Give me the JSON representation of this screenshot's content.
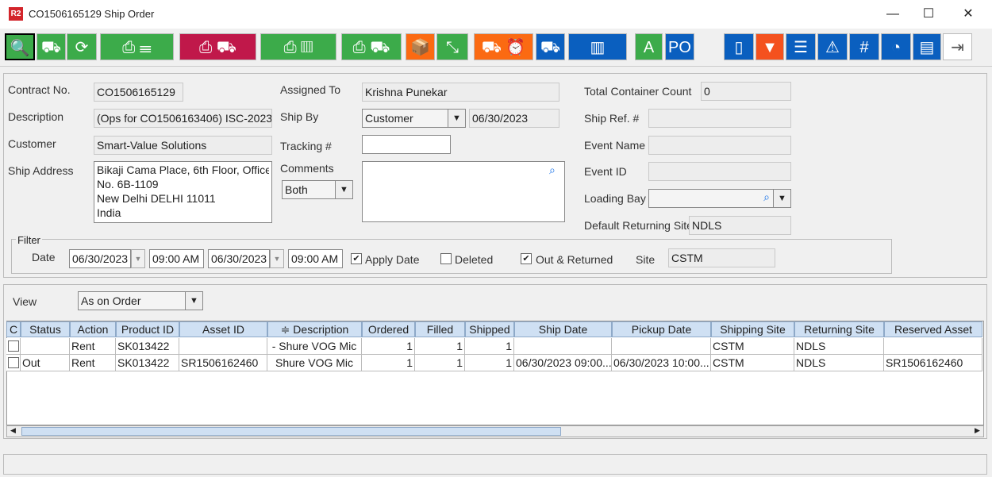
{
  "window": {
    "title": "CO1506165129 Ship Order",
    "logo": "R2",
    "minimize": "—",
    "maximize": "☐",
    "close": "✕"
  },
  "toolbar": [
    {
      "icon": "search-icon",
      "glyph": "🔍",
      "color": "#3cab4a"
    },
    {
      "icon": "hand-truck-print-icon",
      "glyph": "⛟",
      "color": "#3cab4a"
    },
    {
      "icon": "refresh-icon",
      "glyph": "⟳",
      "color": "#3cab4a"
    },
    {
      "icon": "print-list-icon",
      "glyph": "⎙ ☰",
      "color": "#3cab4a"
    },
    {
      "icon": "print-truck-check-icon",
      "glyph": "⎙ ⛟",
      "color": "#c0184a"
    },
    {
      "icon": "print-container-icon",
      "glyph": "⎙ ▥",
      "color": "#3cab4a"
    },
    {
      "icon": "print-truck-clock-icon",
      "glyph": "⎙ ⛟",
      "color": "#3cab4a"
    },
    {
      "icon": "open-box-icon",
      "glyph": "📦",
      "color": "#fb6a12"
    },
    {
      "icon": "compress-icon",
      "glyph": "⤡",
      "color": "#3cab4a"
    },
    {
      "icon": "truck-alarm-icon",
      "glyph": "⛟ ⏰",
      "color": "#fb6a12"
    },
    {
      "icon": "st-truck-icon",
      "glyph": "⛟",
      "color": "#0a5fbf"
    },
    {
      "icon": "container-icon",
      "glyph": "▥",
      "color": "#0a5fbf"
    },
    {
      "icon": "expand-a-icon",
      "glyph": "A",
      "color": "#3cab4a"
    },
    {
      "icon": "po-view-icon",
      "glyph": "PO",
      "color": "#0a5fbf"
    },
    {
      "icon": "book-icon",
      "glyph": "▯",
      "color": "#0a5fbf"
    },
    {
      "icon": "filter-icon",
      "glyph": "▼",
      "color": "#f4511e"
    },
    {
      "icon": "list-icon",
      "glyph": "☰",
      "color": "#0a5fbf"
    },
    {
      "icon": "warning-view-icon",
      "glyph": "⚠",
      "color": "#0a5fbf"
    },
    {
      "icon": "hash-icon",
      "glyph": "#",
      "color": "#0a5fbf"
    },
    {
      "icon": "gauge-icon",
      "glyph": "◔",
      "color": "#0a5fbf"
    },
    {
      "icon": "message-icon",
      "glyph": "▤",
      "color": "#0a5fbf"
    },
    {
      "icon": "exit-icon",
      "glyph": "⇥",
      "color": "#ffffff"
    }
  ],
  "form": {
    "contract_no_label": "Contract No.",
    "contract_no": "CO1506165129",
    "description_label": "Description",
    "description": "(Ops for CO1506163406) ISC-2023",
    "customer_label": "Customer",
    "customer": "Smart-Value Solutions",
    "ship_address_label": "Ship Address",
    "ship_address": [
      "Bikaji Cama Place, 6th Floor, Office",
      "No. 6B-1109",
      "New Delhi DELHI 11011",
      "India"
    ],
    "assigned_to_label": "Assigned To",
    "assigned_to": "Krishna Punekar",
    "ship_by_label": "Ship By",
    "ship_by": "Customer",
    "ship_by_date": "06/30/2023",
    "tracking_label": "Tracking #",
    "tracking": "",
    "comments_label": "Comments",
    "comments_filter": "Both",
    "comments": "",
    "total_container_label": "Total Container Count",
    "total_container": "0",
    "ship_ref_label": "Ship Ref. #",
    "ship_ref": "",
    "event_name_label": "Event Name",
    "event_name": "",
    "event_id_label": "Event ID",
    "event_id": "",
    "loading_bay_label": "Loading Bay",
    "loading_bay": "",
    "default_returning_site_label": "Default Returning Site",
    "default_returning_site": "NDLS"
  },
  "filter": {
    "legend": "Filter",
    "date_label": "Date",
    "from_date": "06/30/2023",
    "from_time": "09:00 AM",
    "to_date": "06/30/2023",
    "to_time": "09:00 AM",
    "apply_date_label": "Apply Date",
    "apply_date": true,
    "deleted_label": "Deleted",
    "deleted": false,
    "out_returned_label": "Out & Returned",
    "out_returned": true,
    "site_label": "Site",
    "site": "CSTM"
  },
  "view": {
    "label": "View",
    "value": "As on Order"
  },
  "table": {
    "columns": [
      "C",
      "Status",
      "Action",
      "Product ID",
      "Asset ID",
      "Description",
      "Ordered",
      "Filled",
      "Shipped",
      "Ship Date",
      "Pickup Date",
      "Shipping Site",
      "Returning Site",
      "Reserved Asset"
    ],
    "rows": [
      [
        "",
        "",
        "Rent",
        "SK013422",
        "",
        "- Shure VOG Mic",
        "1",
        "1",
        "1",
        "",
        "",
        "CSTM",
        "NDLS",
        ""
      ],
      [
        "",
        "Out",
        "Rent",
        "SK013422",
        "SR1506162460",
        "Shure VOG Mic",
        "1",
        "1",
        "1",
        "06/30/2023 09:00...",
        "06/30/2023 10:00...",
        "CSTM",
        "NDLS",
        "SR1506162460"
      ]
    ]
  }
}
